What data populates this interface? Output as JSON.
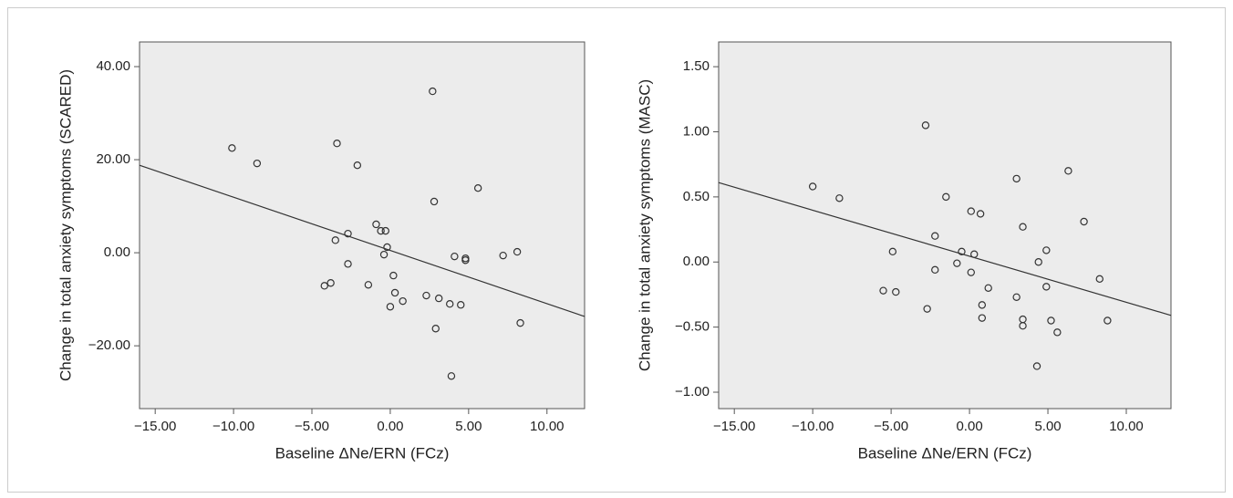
{
  "chart_data": [
    {
      "type": "scatter",
      "xlabel": "Baseline ΔNe/ERN (FCz)",
      "ylabel": "Change in total anxiety symptoms (SCARED)",
      "x": [
        -10.1,
        -8.5,
        -3.4,
        -2.1,
        2.7,
        2.8,
        5.6,
        -0.9,
        -0.6,
        -0.3,
        -3.5,
        -2.7,
        -0.2,
        -0.4,
        -2.7,
        4.1,
        4.8,
        4.8,
        7.2,
        8.1,
        0.2,
        -4.2,
        -3.8,
        -1.4,
        0.3,
        0.8,
        0.0,
        2.3,
        3.1,
        3.8,
        4.5,
        2.9,
        8.3,
        3.9
      ],
      "y": [
        22.5,
        19.2,
        23.5,
        18.8,
        34.7,
        11.0,
        13.9,
        6.1,
        4.7,
        4.7,
        2.7,
        4.1,
        1.2,
        -0.4,
        -2.4,
        -0.8,
        -1.2,
        -1.6,
        -0.6,
        0.2,
        -4.9,
        -7.1,
        -6.5,
        -6.9,
        -8.6,
        -10.4,
        -11.6,
        -9.2,
        -9.8,
        -11.0,
        -11.2,
        -16.3,
        -15.1,
        -26.5
      ],
      "color": "#333333",
      "fit": {
        "x": [
          -16.0,
          12.4
        ],
        "y": [
          18.8,
          -13.7
        ]
      },
      "xlim": [
        -16.0,
        12.4
      ],
      "ylim": [
        -33.5,
        45.3
      ],
      "xticks": [
        {
          "value": -15,
          "label": "−15.00"
        },
        {
          "value": -10,
          "label": "−10.00"
        },
        {
          "value": -5,
          "label": "−5.00"
        },
        {
          "value": 0,
          "label": "0.00"
        },
        {
          "value": 5,
          "label": "5.00"
        },
        {
          "value": 10,
          "label": "10.00"
        }
      ],
      "yticks": [
        {
          "value": -20,
          "label": "−20.00"
        },
        {
          "value": 0,
          "label": "0.00"
        },
        {
          "value": 20,
          "label": "20.00"
        },
        {
          "value": 40,
          "label": "40.00"
        }
      ]
    },
    {
      "type": "scatter",
      "xlabel": "Baseline ΔNe/ERN (FCz)",
      "ylabel": "Change in total anxiety symptoms (MASC)",
      "x": [
        -10.0,
        -8.3,
        -2.8,
        3.0,
        6.3,
        -1.5,
        0.1,
        0.7,
        3.4,
        7.3,
        -2.2,
        -4.9,
        -0.5,
        0.3,
        4.9,
        -0.8,
        4.4,
        -2.2,
        0.1,
        1.2,
        4.9,
        -5.5,
        -4.7,
        3.0,
        8.3,
        0.8,
        -2.7,
        0.8,
        3.4,
        3.4,
        5.2,
        5.6,
        8.8,
        4.3
      ],
      "y": [
        0.58,
        0.49,
        1.05,
        0.64,
        0.7,
        0.5,
        0.39,
        0.37,
        0.27,
        0.31,
        0.2,
        0.08,
        0.08,
        0.06,
        0.09,
        -0.01,
        0.0,
        -0.06,
        -0.08,
        -0.2,
        -0.19,
        -0.22,
        -0.23,
        -0.27,
        -0.13,
        -0.33,
        -0.36,
        -0.43,
        -0.44,
        -0.49,
        -0.45,
        -0.54,
        -0.45,
        -0.8
      ],
      "color": "#333333",
      "fit": {
        "x": [
          -16.0,
          12.85
        ],
        "y": [
          0.61,
          -0.41
        ]
      },
      "xlim": [
        -16.0,
        12.85
      ],
      "ylim": [
        -1.126,
        1.69
      ],
      "xticks": [
        {
          "value": -15,
          "label": "−15.00"
        },
        {
          "value": -10,
          "label": "−10.00"
        },
        {
          "value": -5,
          "label": "−5.00"
        },
        {
          "value": 0,
          "label": "0.00"
        },
        {
          "value": 5,
          "label": "5.00"
        },
        {
          "value": 10,
          "label": "10.00"
        }
      ],
      "yticks": [
        {
          "value": -1,
          "label": "−1.00"
        },
        {
          "value": -0.5,
          "label": "−0.50"
        },
        {
          "value": 0,
          "label": "0.00"
        },
        {
          "value": 0.5,
          "label": "0.50"
        },
        {
          "value": 1,
          "label": "1.00"
        },
        {
          "value": 1.5,
          "label": "1.50"
        }
      ]
    }
  ]
}
